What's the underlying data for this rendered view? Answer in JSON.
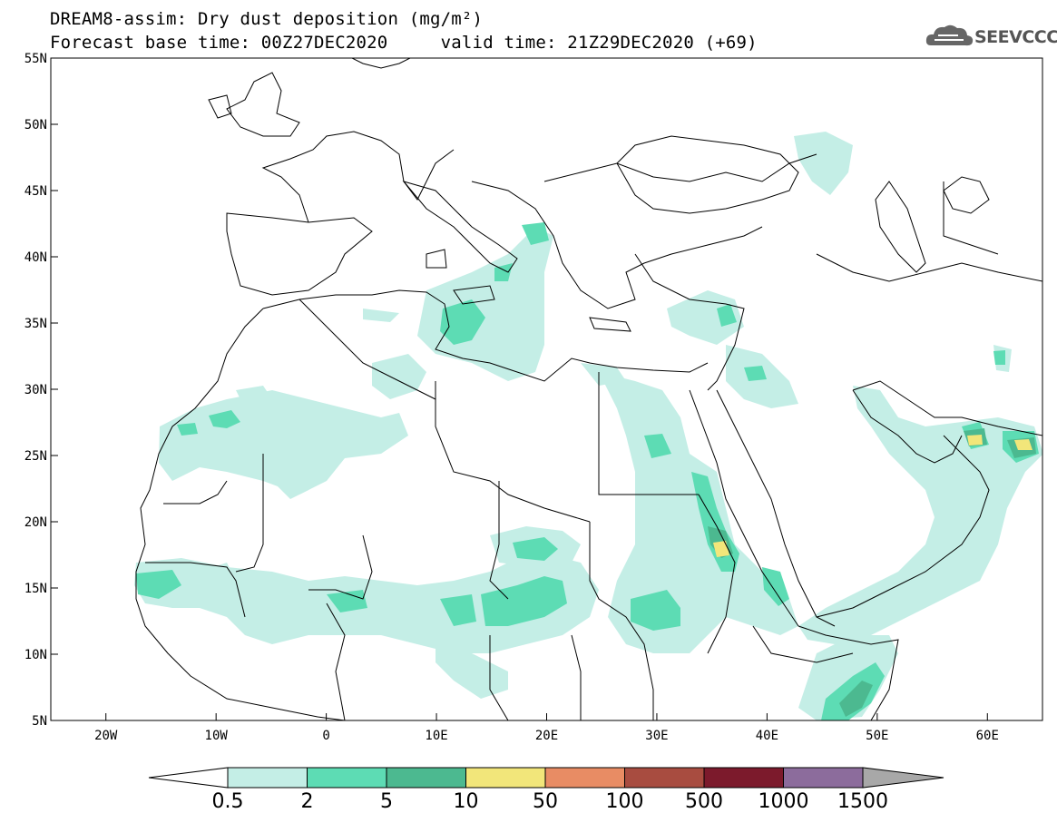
{
  "header": {
    "title_line1": "DREAM8-assim: Dry dust deposition (mg/m²)",
    "title_line2": "Forecast base time: 00Z27DEC2020     valid time: 21Z29DEC2020 (+69)"
  },
  "logo": {
    "text": "SEEVCCC",
    "icon": "cloud-icon"
  },
  "map": {
    "lon_range": [
      -25,
      65
    ],
    "lat_range": [
      5,
      55
    ],
    "lat_ticks": [
      "55N",
      "50N",
      "45N",
      "40N",
      "35N",
      "30N",
      "25N",
      "20N",
      "15N",
      "10N",
      "5N"
    ],
    "lon_ticks": [
      "20W",
      "10W",
      "0",
      "10E",
      "20E",
      "30E",
      "40E",
      "50E",
      "60E"
    ]
  },
  "legend": {
    "labels": [
      "0.5",
      "2",
      "5",
      "10",
      "50",
      "100",
      "500",
      "1000",
      "1500"
    ],
    "colors": [
      "#c4eee6",
      "#5ddcb4",
      "#4cb990",
      "#f2e67a",
      "#e88c64",
      "#a84c40",
      "#7c1a2c",
      "#8c6c9c"
    ],
    "left_arrow_color": "#ffffff",
    "right_arrow_color": "#a8a8a8"
  },
  "colors": {
    "level1": "#c4eee6",
    "level2": "#5ddcb4",
    "level3": "#4cb990",
    "level4": "#f2e67a"
  }
}
